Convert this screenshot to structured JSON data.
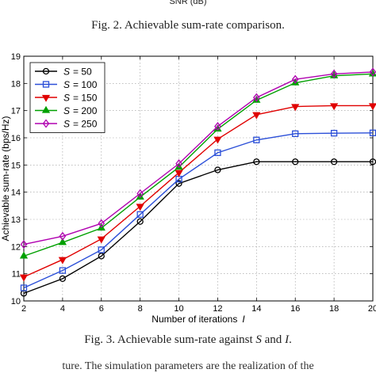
{
  "header_fragment": "SNR (dB)",
  "caption_fig2": "Fig. 2.    Achievable sum-rate comparison.",
  "caption_fig3_parts": {
    "prefix": "Fig. 3.    Achievable sum-rate against ",
    "s": "S",
    "and": " and ",
    "i": "I",
    "suffix": "."
  },
  "footer_fragment": "ture.   The simulation parameters are the realization of the",
  "chart_data": {
    "type": "line",
    "title": "",
    "xlabel": "Number of iterations",
    "xlabel_symbol": "I",
    "ylabel": "Achievable sum-rate (bps/Hz)",
    "x": [
      2,
      4,
      6,
      8,
      10,
      12,
      14,
      16,
      18,
      20
    ],
    "xlim": [
      2,
      20
    ],
    "ylim": [
      10,
      19
    ],
    "xticks": [
      "2",
      "4",
      "6",
      "8",
      "10",
      "12",
      "14",
      "16",
      "18",
      "20"
    ],
    "yticks": [
      "10",
      "11",
      "12",
      "13",
      "14",
      "15",
      "16",
      "17",
      "18",
      "19"
    ],
    "grid": true,
    "legend_position": "top-left",
    "legend_symbol": "S",
    "series": [
      {
        "name": "= 50",
        "color": "#000000",
        "marker": "circle",
        "values": [
          10.28,
          10.82,
          11.65,
          12.92,
          14.32,
          14.82,
          15.12,
          15.12,
          15.12,
          15.12
        ]
      },
      {
        "name": "= 100",
        "color": "#2b4fd8",
        "marker": "square",
        "values": [
          10.48,
          11.12,
          11.88,
          13.18,
          14.48,
          15.45,
          15.92,
          16.15,
          16.17,
          16.18
        ]
      },
      {
        "name": "= 150",
        "color": "#e00000",
        "marker": "triangle-down",
        "values": [
          10.88,
          11.52,
          12.28,
          13.48,
          14.72,
          15.95,
          16.85,
          17.15,
          17.18,
          17.18
        ]
      },
      {
        "name": "= 200",
        "color": "#00a000",
        "marker": "triangle-up",
        "values": [
          11.65,
          12.15,
          12.68,
          13.82,
          14.92,
          16.32,
          17.38,
          18.02,
          18.28,
          18.35
        ]
      },
      {
        "name": "= 250",
        "color": "#b000b0",
        "marker": "diamond",
        "values": [
          12.08,
          12.38,
          12.85,
          13.95,
          15.05,
          16.42,
          17.48,
          18.15,
          18.35,
          18.42
        ]
      }
    ]
  }
}
